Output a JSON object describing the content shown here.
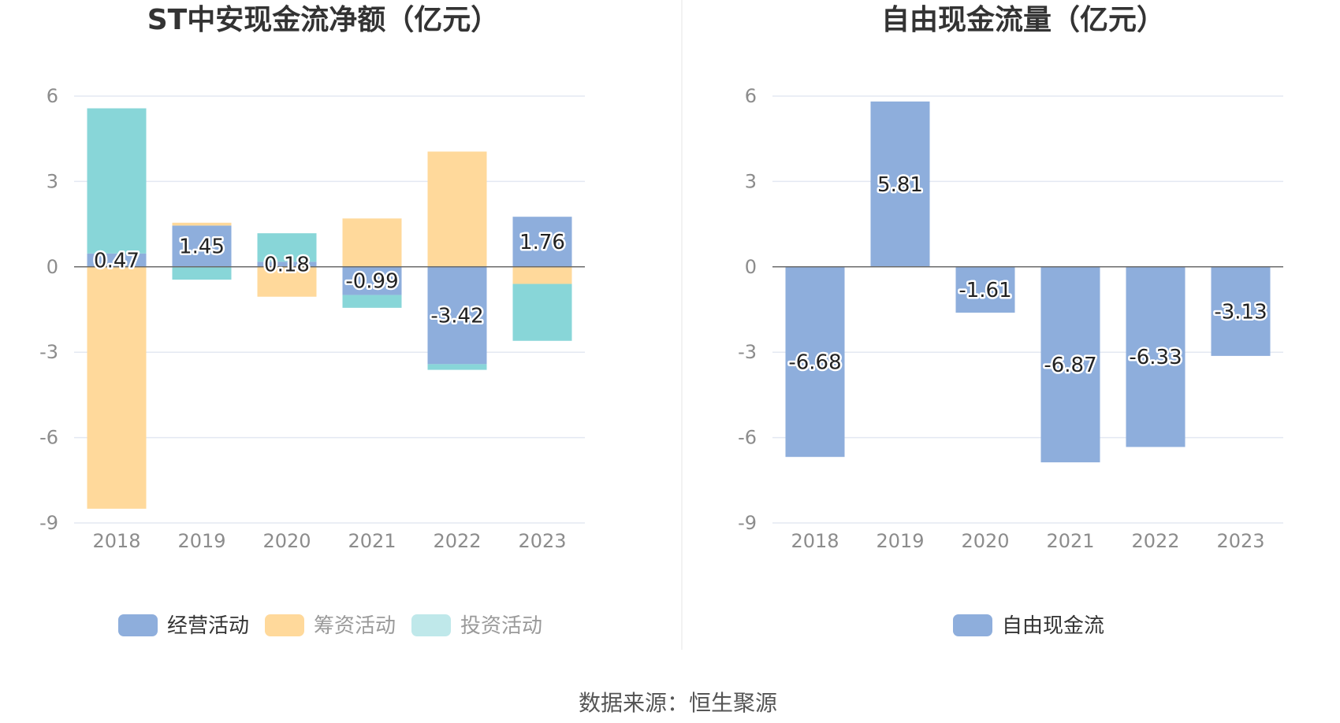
{
  "colors": {
    "operating": "#8eaedc",
    "financing": "#ffd99b",
    "investing": "#88d6d8",
    "investing_legend": "#bfe8ea",
    "free_cash": "#8eaedc",
    "legend_text_active": "#333333",
    "legend_text_faded": "#9a9a9a"
  },
  "source": "数据来源：恒生聚源",
  "chart_data": [
    {
      "type": "bar",
      "stacked": true,
      "title": "ST中安现金流净额（亿元）",
      "categories": [
        "2018",
        "2019",
        "2020",
        "2021",
        "2022",
        "2023"
      ],
      "y_ticks": [
        "6",
        "3",
        "0",
        "-3",
        "-6",
        "-9"
      ],
      "ylim": [
        -9,
        6
      ],
      "grid": true,
      "legend_position": "bottom",
      "series": [
        {
          "name": "经营活动",
          "key": "operating",
          "values": [
            0.47,
            1.45,
            0.18,
            -0.99,
            -3.42,
            1.76
          ],
          "labels": [
            "0.47",
            "1.45",
            "0.18",
            "-0.99",
            "-3.42",
            "1.76"
          ]
        },
        {
          "name": "筹资活动",
          "key": "financing",
          "values": [
            -8.5,
            0.1,
            -1.05,
            1.7,
            4.05,
            -0.6
          ]
        },
        {
          "name": "投资活动",
          "key": "investing",
          "values": [
            5.1,
            -0.45,
            1.0,
            -0.45,
            -0.2,
            -2.0
          ]
        }
      ]
    },
    {
      "type": "bar",
      "title": "自由现金流量（亿元）",
      "categories": [
        "2018",
        "2019",
        "2020",
        "2021",
        "2022",
        "2023"
      ],
      "y_ticks": [
        "6",
        "3",
        "0",
        "-3",
        "-6",
        "-9"
      ],
      "ylim": [
        -9,
        6
      ],
      "grid": true,
      "legend_position": "bottom",
      "series": [
        {
          "name": "自由现金流",
          "key": "free_cash",
          "values": [
            -6.68,
            5.81,
            -1.61,
            -6.87,
            -6.33,
            -3.13
          ],
          "labels": [
            "-6.68",
            "5.81",
            "-1.61",
            "-6.87",
            "-6.33",
            "-3.13"
          ]
        }
      ]
    }
  ]
}
